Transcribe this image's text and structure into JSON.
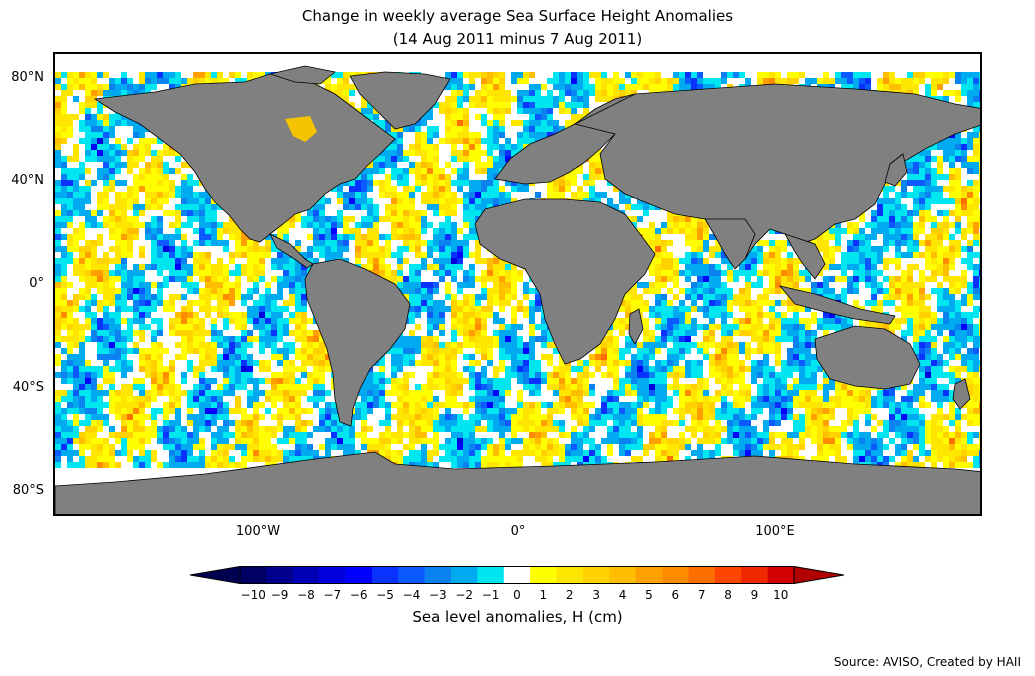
{
  "header": {
    "title": "Change in weekly average Sea Surface Height Anomalies",
    "subtitle": "(14 Aug 2011 minus 7 Aug 2011)"
  },
  "map": {
    "land_color": "#808080",
    "ocean_no_change_color": "#ffffff",
    "lat_labels": [
      "80°N",
      "40°N",
      "0°",
      "40°S",
      "80°S"
    ],
    "lon_labels": [
      "100°W",
      "0°",
      "100°E"
    ]
  },
  "colorbar": {
    "label": "Sea level anomalies, H (cm)",
    "ticks": [
      "−10",
      "−9",
      "−8",
      "−7",
      "−6",
      "−5",
      "−4",
      "−3",
      "−2",
      "−1",
      "0",
      "1",
      "2",
      "3",
      "4",
      "5",
      "6",
      "7",
      "8",
      "9",
      "10"
    ],
    "under_color": "#000050",
    "over_color": "#b00000",
    "colors": [
      "#000064",
      "#00008c",
      "#0000b4",
      "#0000dc",
      "#0000ff",
      "#0a32ff",
      "#0a5aff",
      "#0a82f0",
      "#00aaf0",
      "#00e6f0",
      "#ffffff",
      "#ffff00",
      "#ffe600",
      "#ffd200",
      "#ffbe00",
      "#ffa000",
      "#ff8c00",
      "#ff6e00",
      "#ff4600",
      "#f02800",
      "#d20000"
    ]
  },
  "footer": {
    "source": "Source: AVISO, Created by HAII"
  }
}
